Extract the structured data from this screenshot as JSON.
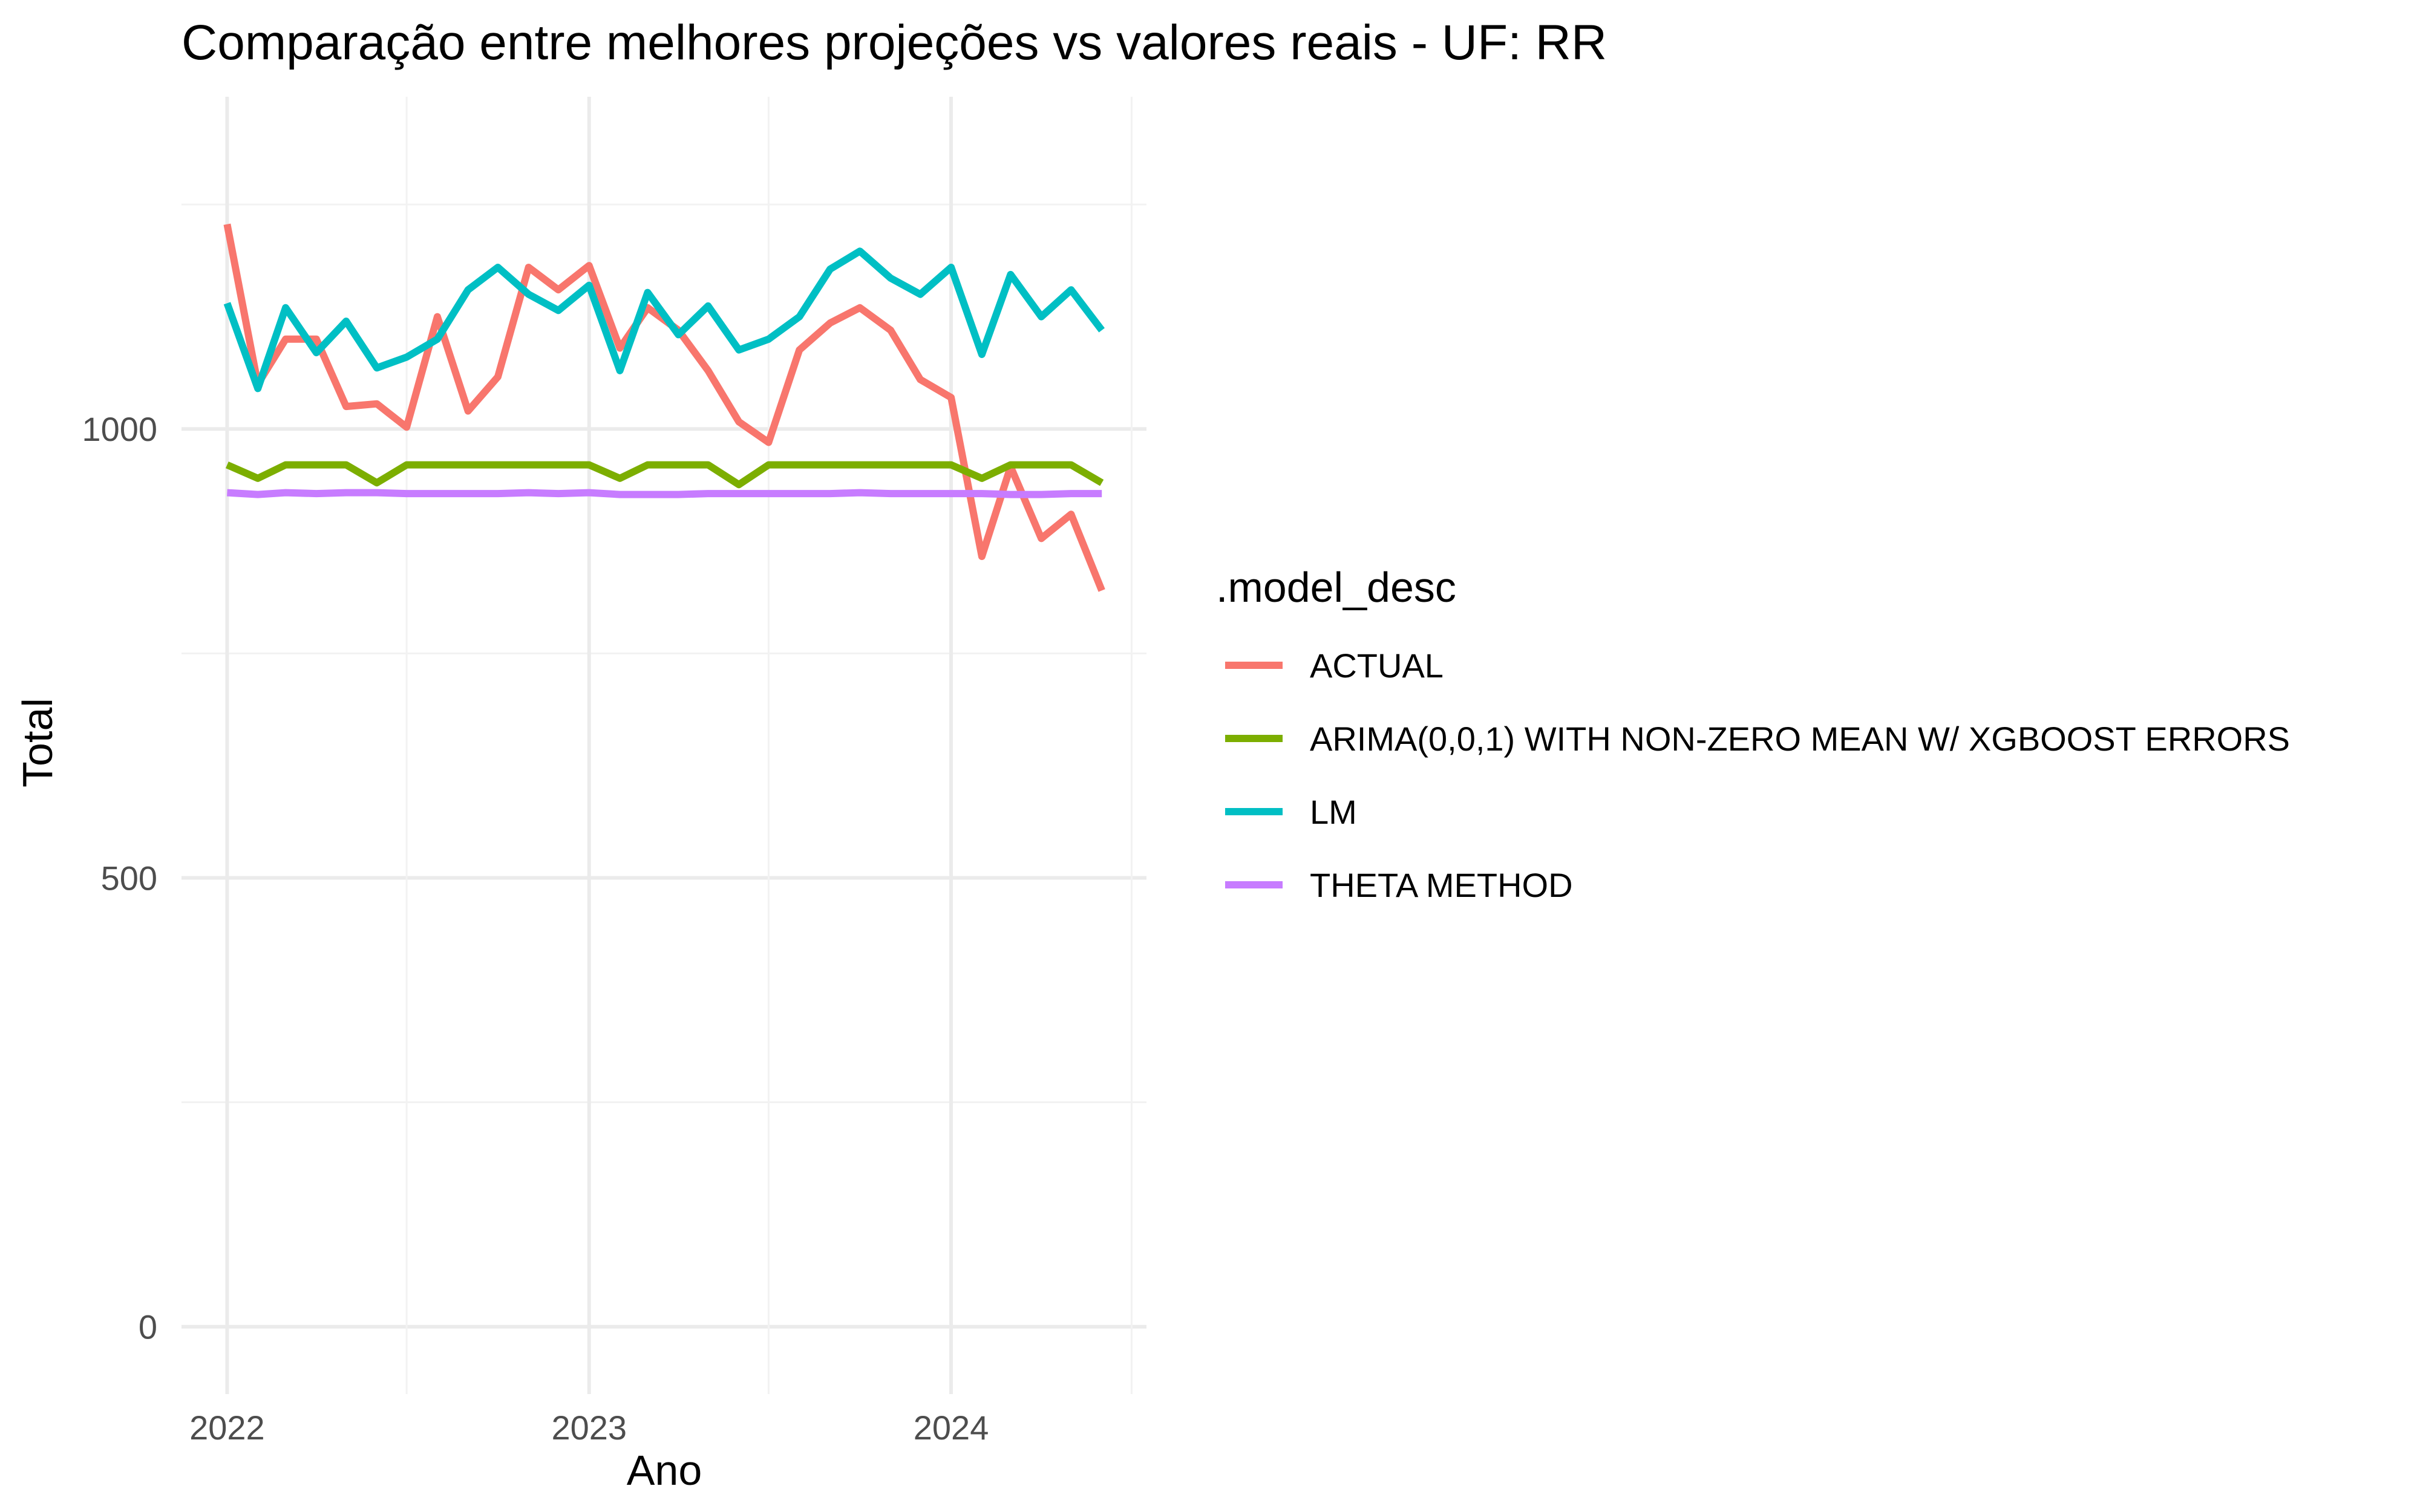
{
  "chart_data": {
    "type": "line",
    "title": "Comparação entre melhores projeções vs valores reais - UF: RR",
    "xlabel": "Ano",
    "ylabel": "Total",
    "x_ticks": [
      "2022",
      "2023",
      "2024"
    ],
    "y_ticks": [
      "0",
      "500",
      "1000"
    ],
    "ylim": [
      -75,
      1370
    ],
    "xlim": [
      "2021-11-16",
      "2024-07-16"
    ],
    "grid": true,
    "legend_title": ".model_desc",
    "legend_position": "right",
    "x": [
      "2022-01-01",
      "2022-02-01",
      "2022-03-01",
      "2022-04-01",
      "2022-05-01",
      "2022-06-01",
      "2022-07-01",
      "2022-08-01",
      "2022-09-01",
      "2022-10-01",
      "2022-11-01",
      "2022-12-01",
      "2023-01-01",
      "2023-02-01",
      "2023-03-01",
      "2023-04-01",
      "2023-05-01",
      "2023-06-01",
      "2023-07-01",
      "2023-08-01",
      "2023-09-01",
      "2023-10-01",
      "2023-11-01",
      "2023-12-01",
      "2024-01-01",
      "2024-02-01",
      "2024-03-01",
      "2024-04-01",
      "2024-05-01",
      "2024-06-01"
    ],
    "series": [
      {
        "name": "ACTUAL",
        "color": "#F8766D",
        "values": [
          1228,
          1050,
          1100,
          1100,
          1025,
          1028,
          1002,
          1125,
          1020,
          1058,
          1180,
          1155,
          1182,
          1090,
          1135,
          1110,
          1065,
          1008,
          985,
          1088,
          1118,
          1135,
          1110,
          1055,
          1035,
          858,
          958,
          878,
          905,
          820
        ]
      },
      {
        "name": "ARIMA(0,0,1) WITH NON-ZERO MEAN W/ XGBOOST ERRORS",
        "color": "#7CAE00",
        "values": [
          960,
          945,
          960,
          960,
          960,
          940,
          960,
          960,
          960,
          960,
          960,
          960,
          960,
          945,
          960,
          960,
          960,
          938,
          960,
          960,
          960,
          960,
          960,
          960,
          960,
          945,
          960,
          960,
          960,
          940
        ]
      },
      {
        "name": "LM",
        "color": "#00BFC4",
        "values": [
          1140,
          1045,
          1135,
          1085,
          1120,
          1068,
          1080,
          1100,
          1155,
          1180,
          1150,
          1132,
          1160,
          1065,
          1152,
          1105,
          1137,
          1088,
          1100,
          1125,
          1178,
          1198,
          1168,
          1150,
          1180,
          1083,
          1172,
          1125,
          1155,
          1110
        ]
      },
      {
        "name": "THETA METHOD",
        "color": "#C77CFF",
        "values": [
          929,
          927,
          929,
          928,
          929,
          929,
          928,
          928,
          928,
          928,
          929,
          928,
          929,
          927,
          927,
          927,
          928,
          928,
          928,
          928,
          928,
          929,
          928,
          928,
          928,
          928,
          927,
          927,
          928,
          928
        ]
      }
    ]
  }
}
